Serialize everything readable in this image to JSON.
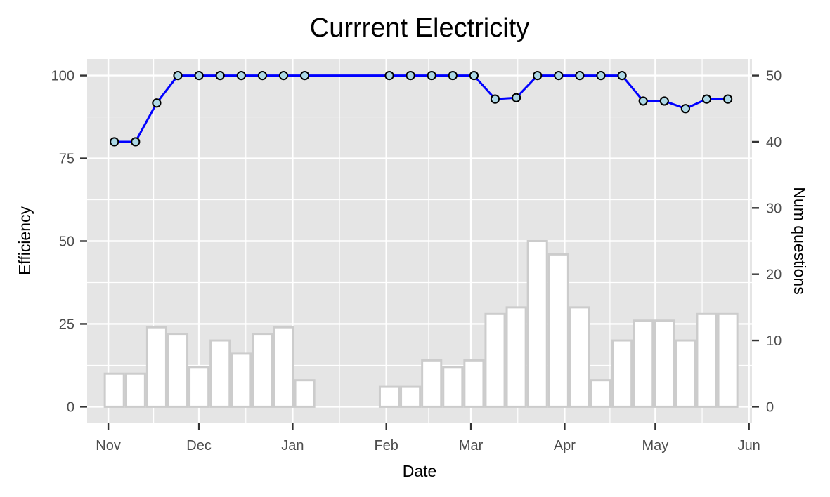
{
  "chart_data": {
    "type": "bar+line",
    "title": "Currrent Electricity",
    "xlabel": "Date",
    "ylabel_left": "Efficiency",
    "ylabel_right": "Num questions",
    "x_ticks": [
      "Nov",
      "Dec",
      "Jan",
      "Feb",
      "Mar",
      "Apr",
      "May",
      "Jun"
    ],
    "x_tick_dates": [
      "2017-11-01",
      "2017-12-01",
      "2018-01-01",
      "2018-02-01",
      "2018-03-01",
      "2018-04-01",
      "2018-05-01",
      "2018-06-01"
    ],
    "xlim": [
      "2017-10-25",
      "2018-06-02"
    ],
    "left_axis": {
      "ylim": [
        -5,
        105
      ],
      "ticks": [
        0,
        25,
        50,
        75,
        100
      ],
      "tick_labels": [
        "0",
        "25",
        "50",
        "75",
        "100"
      ]
    },
    "right_axis": {
      "ylim": [
        -2.5,
        52.5
      ],
      "ticks": [
        0,
        10,
        20,
        30,
        40,
        50
      ],
      "tick_labels": [
        "0",
        "10",
        "20",
        "30",
        "40",
        "50"
      ]
    },
    "grid": true,
    "bar_week_width_days": 7,
    "bars": {
      "name": "Num questions",
      "axis": "right",
      "fill": "#ffffff",
      "stroke": "#cccccc",
      "x": [
        "2017-11-03",
        "2017-11-10",
        "2017-11-17",
        "2017-11-24",
        "2017-12-01",
        "2017-12-08",
        "2017-12-15",
        "2017-12-22",
        "2017-12-29",
        "2018-01-05",
        "2018-02-02",
        "2018-02-09",
        "2018-02-16",
        "2018-02-23",
        "2018-03-02",
        "2018-03-09",
        "2018-03-16",
        "2018-03-23",
        "2018-03-30",
        "2018-04-06",
        "2018-04-13",
        "2018-04-20",
        "2018-04-27",
        "2018-05-04",
        "2018-05-11",
        "2018-05-18",
        "2018-05-25"
      ],
      "values": [
        5,
        5,
        12,
        11,
        6,
        10,
        8,
        11,
        12,
        4,
        3,
        3,
        7,
        6,
        7,
        14,
        15,
        25,
        23,
        15,
        4,
        10,
        13,
        13,
        10,
        14,
        14
      ]
    },
    "line": {
      "name": "Efficiency",
      "axis": "left",
      "color": "#0000ff",
      "marker_fill": "#add8e6",
      "marker_stroke": "#000000",
      "x": [
        "2017-11-03",
        "2017-11-10",
        "2017-11-17",
        "2017-11-24",
        "2017-12-01",
        "2017-12-08",
        "2017-12-15",
        "2017-12-22",
        "2017-12-29",
        "2018-01-05",
        "2018-02-02",
        "2018-02-09",
        "2018-02-16",
        "2018-02-23",
        "2018-03-02",
        "2018-03-09",
        "2018-03-16",
        "2018-03-23",
        "2018-03-30",
        "2018-04-06",
        "2018-04-13",
        "2018-04-20",
        "2018-04-27",
        "2018-05-04",
        "2018-05-11",
        "2018-05-18",
        "2018-05-25"
      ],
      "values": [
        80,
        80,
        91.7,
        100,
        100,
        100,
        100,
        100,
        100,
        100,
        100,
        100,
        100,
        100,
        100,
        92.9,
        93.3,
        100,
        100,
        100,
        100,
        100,
        92.3,
        92.3,
        90,
        92.9,
        92.9
      ]
    },
    "colors": {
      "panel_bg": "#e5e5e5",
      "grid_major": "#ffffff",
      "axis_tick": "#333333"
    }
  }
}
